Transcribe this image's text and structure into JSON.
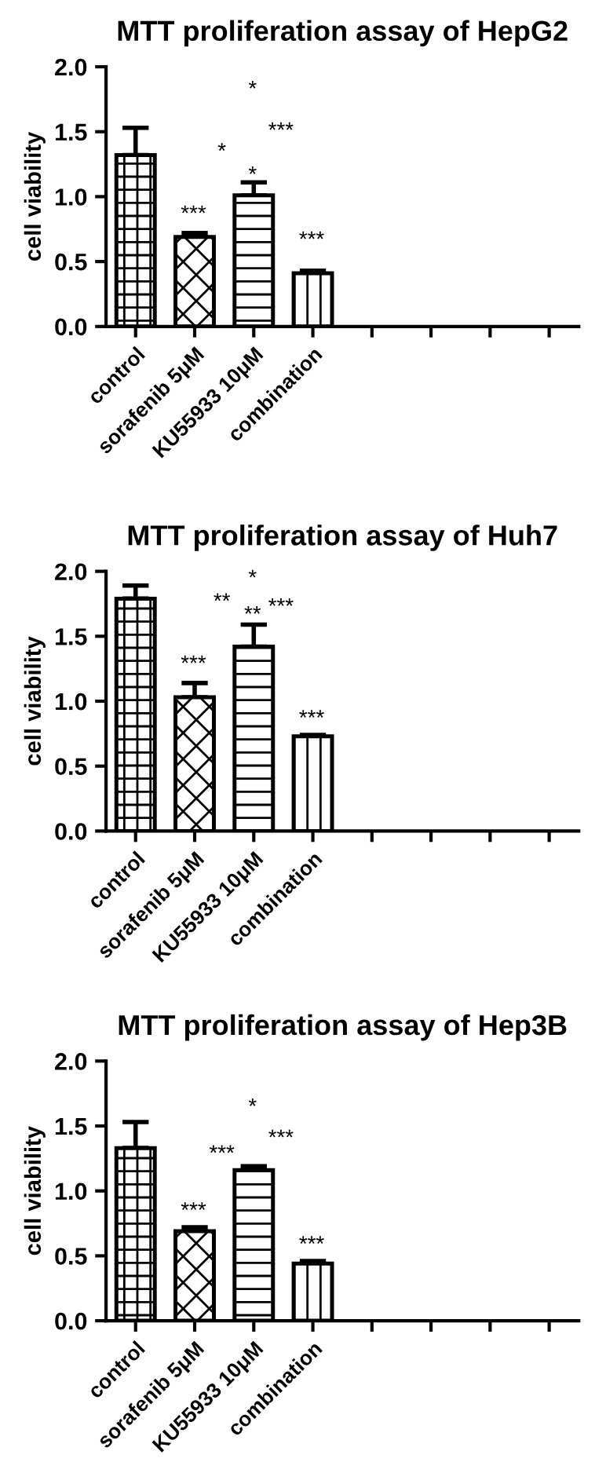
{
  "chart_data": [
    {
      "type": "bar",
      "title": "MTT proliferation assay of HepG2",
      "ylabel": "cell viability",
      "categories": [
        "control",
        "sorafenib 5μM",
        "KU55933 10μM",
        "combination",
        null,
        null,
        null,
        null
      ],
      "values": [
        1.32,
        0.69,
        1.01,
        0.41,
        null,
        null,
        null,
        null
      ],
      "errors": [
        [
          1.32,
          1.53
        ],
        [
          0.69,
          0.72
        ],
        [
          1.01,
          1.11
        ],
        [
          0.41,
          0.43
        ],
        null,
        null,
        null,
        null
      ],
      "ylim": [
        0,
        2.0
      ],
      "yticks": [
        {
          "value": 0,
          "label": "0.0"
        },
        {
          "value": 0.5,
          "label": "0.5"
        },
        {
          "value": 1.0,
          "label": "1.0"
        },
        {
          "value": 1.5,
          "label": "1.5"
        },
        {
          "value": 2.0,
          "label": "2.0"
        }
      ],
      "grid": false,
      "legend": false,
      "annotations": [
        "***",
        "*",
        "***",
        "*",
        "*",
        "***"
      ]
    },
    {
      "type": "bar",
      "title": "MTT proliferation assay of Huh7",
      "ylabel": "cell viability",
      "categories": [
        "control",
        "sorafenib 5μM",
        "KU55933 10μM",
        "combination",
        null,
        null,
        null,
        null
      ],
      "values": [
        1.79,
        1.03,
        1.42,
        0.73,
        null,
        null,
        null,
        null
      ],
      "errors": [
        [
          1.79,
          1.89
        ],
        [
          1.03,
          1.14
        ],
        [
          1.42,
          1.59
        ],
        [
          0.73,
          0.74
        ],
        null,
        null,
        null,
        null
      ],
      "ylim": [
        0,
        2.0
      ],
      "yticks": [
        {
          "value": 0,
          "label": "0.0"
        },
        {
          "value": 0.5,
          "label": "0.5"
        },
        {
          "value": 1.0,
          "label": "1.0"
        },
        {
          "value": 1.5,
          "label": "1.5"
        },
        {
          "value": 2.0,
          "label": "2.0"
        }
      ],
      "grid": false,
      "legend": false,
      "annotations": [
        "***",
        "**",
        "***",
        "*",
        "**",
        "***"
      ]
    },
    {
      "type": "bar",
      "title": "MTT proliferation assay of Hep3B",
      "ylabel": "cell viability",
      "categories": [
        "control",
        "sorafenib 5μM",
        "KU55933 10μM",
        "combination",
        null,
        null,
        null,
        null
      ],
      "values": [
        1.33,
        0.69,
        1.16,
        0.44,
        null,
        null,
        null,
        null
      ],
      "errors": [
        [
          1.33,
          1.53
        ],
        [
          0.69,
          0.72
        ],
        [
          1.16,
          1.19
        ],
        [
          0.44,
          0.46
        ],
        null,
        null,
        null,
        null
      ],
      "ylim": [
        0,
        2.0
      ],
      "yticks": [
        {
          "value": 0,
          "label": "0.0"
        },
        {
          "value": 0.5,
          "label": "0.5"
        },
        {
          "value": 1.0,
          "label": "1.0"
        },
        {
          "value": 1.5,
          "label": "1.5"
        },
        {
          "value": 2.0,
          "label": "2.0"
        }
      ],
      "grid": false,
      "legend": false,
      "annotations": [
        "***",
        "***",
        "*",
        "***",
        "***"
      ]
    }
  ]
}
